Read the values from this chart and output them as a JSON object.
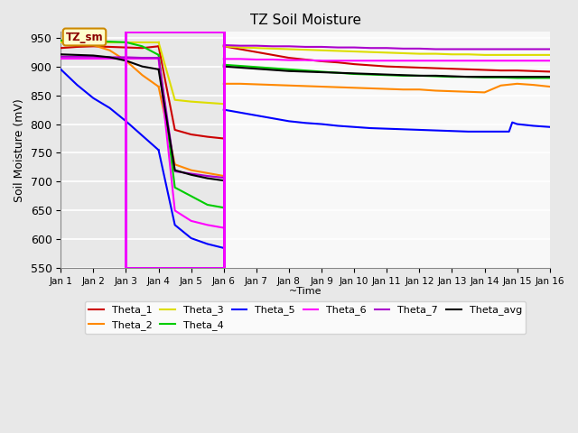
{
  "title": "TZ Soil Moisture",
  "xlabel": "~Time",
  "ylabel": "Soil Moisture (mV)",
  "ylim": [
    550,
    960
  ],
  "xlim": [
    0,
    15
  ],
  "xtick_labels": [
    "Jan 1",
    "Jan 2",
    "Jan 3",
    "Jan 4",
    "Jan 5",
    "Jan 6",
    "Jan 7",
    "Jan 8",
    "Jan 9",
    "Jan 10",
    "Jan 11",
    "Jan 12",
    "Jan 13",
    "Jan 14",
    "Jan 15",
    "Jan 16"
  ],
  "ytick_values": [
    550,
    600,
    650,
    700,
    750,
    800,
    850,
    900,
    950
  ],
  "background_color": "#e8e8e8",
  "plot_bg_color": "#e8e8e8",
  "right_bg_color": "#f5f5f5",
  "annotation_text": "TZ_sm",
  "annotation_box_color": "#ffffcc",
  "annotation_border_color": "#cc8800",
  "rect_color": "#ff00ff",
  "rect_x1": 2.0,
  "rect_x2": 5.0,
  "series": {
    "Theta_1": {
      "color": "#cc0000",
      "x1": [
        0,
        0.5,
        1.0,
        1.5,
        2.0,
        2.5,
        3.0
      ],
      "y1": [
        932,
        934,
        935,
        934,
        933,
        932,
        935
      ],
      "x2": [
        3.0,
        3.5,
        4.0,
        4.5,
        5.0
      ],
      "y2": [
        935,
        790,
        782,
        778,
        775
      ],
      "x3": [
        5.0,
        5.5,
        6.0,
        6.5,
        7.0,
        7.5,
        8.0,
        8.5,
        9.0,
        9.5,
        10.0,
        10.5,
        11.0,
        11.5,
        12.0,
        12.5,
        13.0,
        13.5,
        14.0,
        14.5,
        15.0
      ],
      "y3": [
        935,
        930,
        925,
        920,
        915,
        912,
        909,
        907,
        904,
        902,
        900,
        899,
        898,
        897,
        896,
        895,
        894,
        893,
        893,
        892,
        891
      ]
    },
    "Theta_2": {
      "color": "#ff8800",
      "x1": [
        0,
        0.5,
        1.0,
        1.5,
        2.0,
        2.5,
        3.0
      ],
      "y1": [
        943,
        940,
        937,
        928,
        910,
        885,
        865
      ],
      "x2": [
        3.0,
        3.5,
        4.0,
        4.5,
        5.0
      ],
      "y2": [
        865,
        730,
        720,
        715,
        710
      ],
      "x3": [
        5.0,
        5.5,
        6.0,
        6.5,
        7.0,
        7.5,
        8.0,
        8.5,
        9.0,
        9.5,
        10.0,
        10.5,
        11.0,
        11.5,
        12.0,
        12.5,
        13.0,
        13.5,
        14.0,
        14.5,
        15.0
      ],
      "y3": [
        870,
        870,
        869,
        868,
        867,
        866,
        865,
        864,
        863,
        862,
        861,
        860,
        860,
        858,
        857,
        856,
        855,
        867,
        870,
        868,
        865
      ]
    },
    "Theta_3": {
      "color": "#dddd00",
      "x1": [
        0,
        0.5,
        1.0,
        1.5,
        2.0,
        2.5,
        3.0
      ],
      "y1": [
        942,
        942,
        942,
        942,
        942,
        942,
        942
      ],
      "x2": [
        3.0,
        3.5,
        4.0,
        4.5,
        5.0
      ],
      "y2": [
        942,
        842,
        839,
        837,
        835
      ],
      "x3": [
        5.0,
        5.5,
        6.0,
        6.5,
        7.0,
        7.5,
        8.0,
        8.5,
        9.0,
        9.5,
        10.0,
        10.5,
        11.0,
        11.5,
        12.0,
        12.5,
        13.0,
        13.5,
        14.0,
        14.5,
        15.0
      ],
      "y3": [
        935,
        933,
        932,
        931,
        930,
        929,
        928,
        927,
        926,
        925,
        924,
        923,
        922,
        922,
        921,
        921,
        920,
        920,
        920,
        920,
        920
      ]
    },
    "Theta_4": {
      "color": "#00cc00",
      "x1": [
        0,
        0.5,
        1.0,
        1.5,
        2.0,
        2.5,
        3.0
      ],
      "y1": [
        945,
        945,
        944,
        943,
        942,
        935,
        920
      ],
      "x2": [
        3.0,
        3.5,
        4.0,
        4.5,
        5.0
      ],
      "y2": [
        920,
        690,
        675,
        660,
        655
      ],
      "x3": [
        5.0,
        5.5,
        6.0,
        6.5,
        7.0,
        7.5,
        8.0,
        8.5,
        9.0,
        9.5,
        10.0,
        10.5,
        11.0,
        11.5,
        12.0,
        12.5,
        13.0,
        13.5,
        14.0,
        14.5,
        15.0
      ],
      "y3": [
        903,
        901,
        899,
        897,
        895,
        893,
        891,
        889,
        887,
        886,
        885,
        884,
        884,
        883,
        882,
        882,
        881,
        881,
        880,
        880,
        880
      ]
    },
    "Theta_5": {
      "color": "#0000ff",
      "x1": [
        0,
        0.5,
        1.0,
        1.5,
        2.0,
        2.5,
        3.0
      ],
      "y1": [
        895,
        868,
        845,
        828,
        805,
        780,
        755
      ],
      "x2": [
        3.0,
        3.5,
        4.0,
        4.5,
        5.0
      ],
      "y2": [
        755,
        625,
        602,
        592,
        585
      ],
      "x3": [
        5.0,
        5.5,
        6.0,
        6.5,
        7.0,
        7.5,
        8.0,
        8.5,
        9.0,
        9.5,
        10.0,
        10.5,
        11.0,
        11.5,
        12.0,
        12.5,
        13.0,
        13.75,
        13.85,
        14.0,
        14.5,
        15.0
      ],
      "y3": [
        825,
        820,
        815,
        810,
        805,
        802,
        800,
        797,
        795,
        793,
        792,
        791,
        790,
        789,
        788,
        787,
        787,
        787,
        803,
        800,
        797,
        795
      ]
    },
    "Theta_6": {
      "color": "#ff00ff",
      "x1": [
        0,
        0.5,
        1.0,
        1.5,
        2.0,
        2.5,
        3.0
      ],
      "y1": [
        913,
        913,
        913,
        913,
        913,
        913,
        913
      ],
      "x2": [
        3.0,
        3.5,
        4.0,
        4.5,
        5.0
      ],
      "y2": [
        913,
        650,
        632,
        625,
        620
      ],
      "x3": [
        5.0,
        5.5,
        6.0,
        6.5,
        7.0,
        7.5,
        8.0,
        8.5,
        9.0,
        9.5,
        10.0,
        10.5,
        11.0,
        11.5,
        12.0,
        12.5,
        13.0,
        13.5,
        14.0,
        14.5,
        15.0
      ],
      "y3": [
        913,
        913,
        912,
        912,
        911,
        911,
        910,
        910,
        910,
        910,
        910,
        910,
        910,
        910,
        910,
        910,
        910,
        910,
        910,
        910,
        910
      ]
    },
    "Theta_7": {
      "color": "#aa00cc",
      "x1": [
        0,
        0.5,
        1.0,
        1.5,
        2.0,
        2.5,
        3.0
      ],
      "y1": [
        917,
        917,
        917,
        916,
        916,
        915,
        915
      ],
      "x2": [
        3.0,
        3.5,
        4.0,
        4.5,
        5.0
      ],
      "y2": [
        915,
        718,
        714,
        710,
        707
      ],
      "x3": [
        5.0,
        5.5,
        6.0,
        6.5,
        7.0,
        7.5,
        8.0,
        8.5,
        9.0,
        9.5,
        10.0,
        10.5,
        11.0,
        11.5,
        12.0,
        12.5,
        13.0,
        13.5,
        14.0,
        14.5,
        15.0
      ],
      "y3": [
        937,
        936,
        936,
        935,
        935,
        934,
        934,
        933,
        933,
        932,
        932,
        931,
        931,
        930,
        930,
        930,
        930,
        930,
        930,
        930,
        930
      ]
    },
    "Theta_avg": {
      "color": "#000000",
      "x1": [
        0,
        0.5,
        1.0,
        1.5,
        2.0,
        2.5,
        3.0
      ],
      "y1": [
        921,
        920,
        919,
        916,
        910,
        900,
        895
      ],
      "x2": [
        3.0,
        3.5,
        4.0,
        4.5,
        5.0
      ],
      "y2": [
        895,
        720,
        712,
        706,
        702
      ],
      "x3": [
        5.0,
        5.5,
        6.0,
        6.5,
        7.0,
        7.5,
        8.0,
        8.5,
        9.0,
        9.5,
        10.0,
        10.5,
        11.0,
        11.5,
        12.0,
        12.5,
        13.0,
        13.5,
        14.0,
        14.5,
        15.0
      ],
      "y3": [
        900,
        898,
        896,
        894,
        892,
        891,
        890,
        889,
        888,
        887,
        886,
        885,
        884,
        884,
        883,
        882,
        882,
        882,
        882,
        882,
        882
      ]
    }
  }
}
